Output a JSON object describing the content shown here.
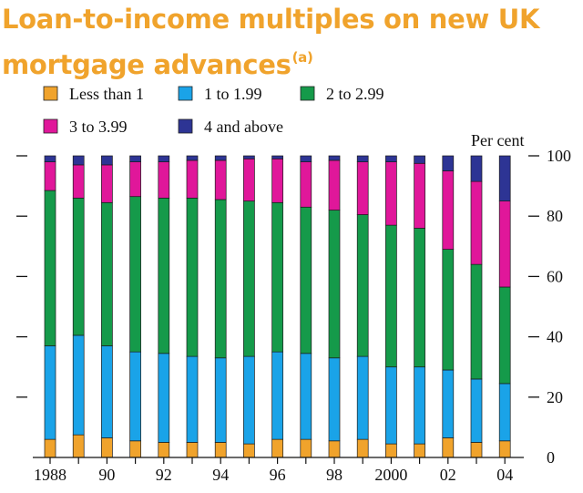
{
  "chart_data": {
    "type": "bar",
    "stacked": true,
    "title": "Loan-to-income multiples on new UK mortgage advances",
    "title_line1": "Loan-to-income multiples on new UK",
    "title_line2": "mortgage advances",
    "title_footnote": "(a)",
    "ylabel": "Per cent",
    "ylim": [
      0,
      100
    ],
    "yticks": [
      0,
      20,
      40,
      60,
      80,
      100
    ],
    "grid": false,
    "legend_position": "top",
    "categories": [
      "1988",
      "1989",
      "1990",
      "1991",
      "1992",
      "1993",
      "1994",
      "1995",
      "1996",
      "1997",
      "1998",
      "1999",
      "2000",
      "2001",
      "2002",
      "2003",
      "2004"
    ],
    "x_tick_labels": [
      {
        "index": 0,
        "label": "1988"
      },
      {
        "index": 2,
        "label": "90"
      },
      {
        "index": 4,
        "label": "92"
      },
      {
        "index": 6,
        "label": "94"
      },
      {
        "index": 8,
        "label": "96"
      },
      {
        "index": 10,
        "label": "98"
      },
      {
        "index": 12,
        "label": "2000"
      },
      {
        "index": 14,
        "label": "02"
      },
      {
        "index": 16,
        "label": "04"
      }
    ],
    "series": [
      {
        "name": "Less than 1",
        "color": "#f0a32c",
        "values": [
          6,
          7.5,
          6.5,
          5.5,
          5,
          5,
          5,
          4.5,
          6,
          6,
          5.5,
          6,
          4.5,
          4.5,
          6.5,
          5,
          5.5
        ]
      },
      {
        "name": "1 to 1.99",
        "color": "#1aa3e8",
        "values": [
          31,
          33,
          30.5,
          29.5,
          29.5,
          28.5,
          28,
          29,
          29,
          28.5,
          27.5,
          27.5,
          25.5,
          25.5,
          22.5,
          21,
          19
        ]
      },
      {
        "name": "2 to 2.99",
        "color": "#159a4a",
        "values": [
          51.5,
          45.5,
          47.5,
          51.5,
          51.5,
          52.5,
          52.5,
          51.5,
          49.5,
          48.5,
          49,
          47,
          47,
          46,
          40,
          38,
          32
        ]
      },
      {
        "name": "3 to 3.99",
        "color": "#e0179a",
        "values": [
          9.5,
          11,
          12.5,
          11.5,
          12,
          12.5,
          13,
          14,
          14.5,
          15,
          16.5,
          17.5,
          21,
          21.5,
          26,
          27.5,
          28.5
        ]
      },
      {
        "name": "4 and above",
        "color": "#2d3494",
        "values": [
          2,
          3,
          3,
          2,
          2,
          1.5,
          1.5,
          1,
          1,
          2,
          1.5,
          2,
          2,
          2.5,
          5,
          8.5,
          15
        ]
      }
    ]
  }
}
